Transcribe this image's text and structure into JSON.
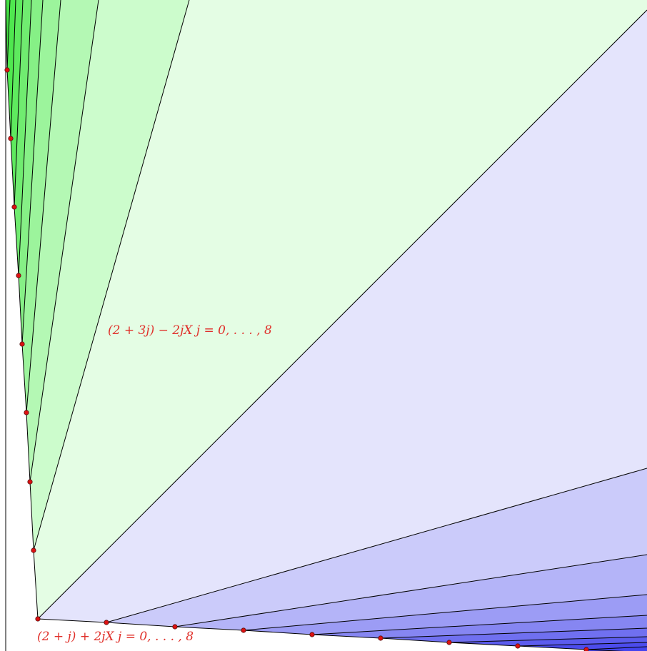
{
  "annotations": {
    "upper": "(2 + 3j) − 2jX    j = 0, . . . , 8",
    "lower": "(2 + j) + 2jX    j = 0, . . . , 8"
  },
  "colors": {
    "green_light": "#e4fde4",
    "green_dark": "#4fe84f",
    "blue_light": "#e4e4fc",
    "blue_dark": "#4444ee",
    "edge": "#000000",
    "vertex_fill": "#dd1111",
    "label": "#e0302a"
  },
  "vertex_count": 9
}
